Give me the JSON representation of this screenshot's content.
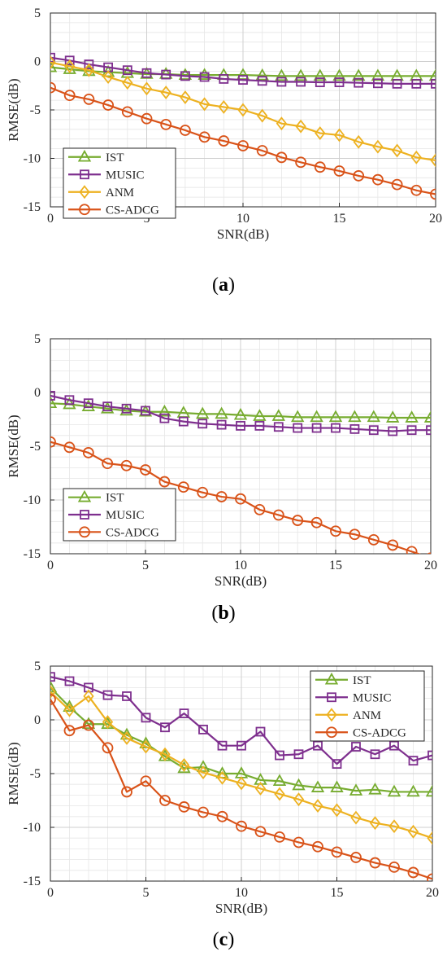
{
  "chart_data": [
    {
      "type": "line",
      "caption": "(a)",
      "xlabel": "SNR(dB)",
      "ylabel": "RMSE(dB)",
      "xlim": [
        0,
        20
      ],
      "ylim": [
        -15,
        5
      ],
      "xticks": [
        0,
        5,
        10,
        15,
        20
      ],
      "yticks": [
        -15,
        -10,
        -5,
        0,
        5
      ],
      "grid": true,
      "legend_position": "bottom-left",
      "x": [
        0,
        1,
        2,
        3,
        4,
        5,
        6,
        7,
        8,
        9,
        10,
        11,
        12,
        13,
        14,
        15,
        16,
        17,
        18,
        19,
        20
      ],
      "series": [
        {
          "name": "IST",
          "marker": "triangle",
          "color": "#77AC30",
          "values": [
            -0.6,
            -0.8,
            -1.0,
            -1.1,
            -1.2,
            -1.3,
            -1.3,
            -1.4,
            -1.4,
            -1.4,
            -1.4,
            -1.45,
            -1.5,
            -1.5,
            -1.5,
            -1.5,
            -1.5,
            -1.5,
            -1.5,
            -1.5,
            -1.5
          ]
        },
        {
          "name": "MUSIC",
          "marker": "square",
          "color": "#7E2F8E",
          "values": [
            0.4,
            0.1,
            -0.3,
            -0.6,
            -0.9,
            -1.2,
            -1.35,
            -1.5,
            -1.6,
            -1.8,
            -1.9,
            -2.0,
            -2.1,
            -2.1,
            -2.15,
            -2.15,
            -2.2,
            -2.25,
            -2.3,
            -2.3,
            -2.3
          ]
        },
        {
          "name": "ANM",
          "marker": "diamond",
          "color": "#EDB120",
          "values": [
            -0.1,
            -0.5,
            -0.9,
            -1.6,
            -2.2,
            -2.8,
            -3.2,
            -3.7,
            -4.4,
            -4.7,
            -5.0,
            -5.6,
            -6.4,
            -6.7,
            -7.4,
            -7.6,
            -8.3,
            -8.8,
            -9.2,
            -9.9,
            -10.2
          ]
        },
        {
          "name": "CS-ADCG",
          "marker": "circle",
          "color": "#D95319",
          "values": [
            -2.7,
            -3.5,
            -3.9,
            -4.5,
            -5.2,
            -5.9,
            -6.5,
            -7.1,
            -7.8,
            -8.2,
            -8.7,
            -9.2,
            -9.9,
            -10.4,
            -10.9,
            -11.3,
            -11.8,
            -12.2,
            -12.7,
            -13.3,
            -13.7
          ]
        }
      ]
    },
    {
      "type": "line",
      "caption": "(b)",
      "xlabel": "SNR(dB)",
      "ylabel": "RMSE(dB)",
      "xlim": [
        0,
        20
      ],
      "ylim": [
        -15,
        5
      ],
      "xticks": [
        0,
        5,
        10,
        15,
        20
      ],
      "yticks": [
        -15,
        -10,
        -5,
        0,
        5
      ],
      "grid": true,
      "legend_position": "bottom-left",
      "x": [
        0,
        1,
        2,
        3,
        4,
        5,
        6,
        7,
        8,
        9,
        10,
        11,
        12,
        13,
        14,
        15,
        16,
        17,
        18,
        19,
        20
      ],
      "series": [
        {
          "name": "IST",
          "marker": "triangle",
          "color": "#77AC30",
          "values": [
            -1.0,
            -1.1,
            -1.3,
            -1.5,
            -1.7,
            -1.8,
            -1.8,
            -1.9,
            -2.0,
            -2.0,
            -2.1,
            -2.2,
            -2.2,
            -2.3,
            -2.3,
            -2.3,
            -2.3,
            -2.3,
            -2.35,
            -2.35,
            -2.35
          ]
        },
        {
          "name": "MUSIC",
          "marker": "square",
          "color": "#7E2F8E",
          "values": [
            -0.3,
            -0.7,
            -1.0,
            -1.3,
            -1.5,
            -1.7,
            -2.4,
            -2.7,
            -2.9,
            -3.0,
            -3.1,
            -3.1,
            -3.2,
            -3.3,
            -3.3,
            -3.3,
            -3.4,
            -3.5,
            -3.6,
            -3.5,
            -3.5
          ]
        },
        {
          "name": "CS-ADCG",
          "marker": "circle",
          "color": "#D95319",
          "values": [
            -4.6,
            -5.1,
            -5.6,
            -6.6,
            -6.8,
            -7.2,
            -8.3,
            -8.8,
            -9.3,
            -9.7,
            -9.9,
            -10.9,
            -11.4,
            -11.9,
            -12.1,
            -12.9,
            -13.2,
            -13.7,
            -14.2,
            -14.8,
            -15.4
          ]
        }
      ]
    },
    {
      "type": "line",
      "caption": "(c)",
      "xlabel": "SNR(dB)",
      "ylabel": "RMSE(dB)",
      "xlim": [
        0,
        20
      ],
      "ylim": [
        -15,
        5
      ],
      "xticks": [
        0,
        5,
        10,
        15,
        20
      ],
      "yticks": [
        -15,
        -10,
        -5,
        0,
        5
      ],
      "grid": true,
      "legend_position": "top-right",
      "x": [
        0,
        1,
        2,
        3,
        4,
        5,
        6,
        7,
        8,
        9,
        10,
        11,
        12,
        13,
        14,
        15,
        16,
        17,
        18,
        19,
        20
      ],
      "series": [
        {
          "name": "IST",
          "marker": "triangle",
          "color": "#77AC30",
          "values": [
            3.0,
            1.2,
            -0.4,
            -0.4,
            -1.4,
            -2.2,
            -3.4,
            -4.5,
            -4.4,
            -5.0,
            -5.0,
            -5.6,
            -5.7,
            -6.1,
            -6.3,
            -6.3,
            -6.6,
            -6.5,
            -6.7,
            -6.7,
            -6.7
          ]
        },
        {
          "name": "MUSIC",
          "marker": "square",
          "color": "#7E2F8E",
          "values": [
            4.0,
            3.6,
            3.0,
            2.3,
            2.2,
            0.2,
            -0.7,
            0.6,
            -0.9,
            -2.4,
            -2.4,
            -1.1,
            -3.3,
            -3.2,
            -2.4,
            -4.1,
            -2.5,
            -3.2,
            -2.4,
            -3.8,
            -3.3
          ]
        },
        {
          "name": "ANM",
          "marker": "diamond",
          "color": "#EDB120",
          "values": [
            2.6,
            0.9,
            2.2,
            -0.2,
            -1.7,
            -2.5,
            -3.2,
            -4.2,
            -4.9,
            -5.4,
            -5.9,
            -6.4,
            -6.9,
            -7.4,
            -8.0,
            -8.4,
            -9.1,
            -9.6,
            -9.9,
            -10.4,
            -11.0
          ]
        },
        {
          "name": "CS-ADCG",
          "marker": "circle",
          "color": "#D95319",
          "values": [
            1.9,
            -1.0,
            -0.5,
            -2.6,
            -6.7,
            -5.7,
            -7.5,
            -8.1,
            -8.6,
            -9.0,
            -9.9,
            -10.4,
            -10.9,
            -11.4,
            -11.8,
            -12.3,
            -12.8,
            -13.3,
            -13.7,
            -14.2,
            -14.8
          ]
        }
      ]
    }
  ]
}
